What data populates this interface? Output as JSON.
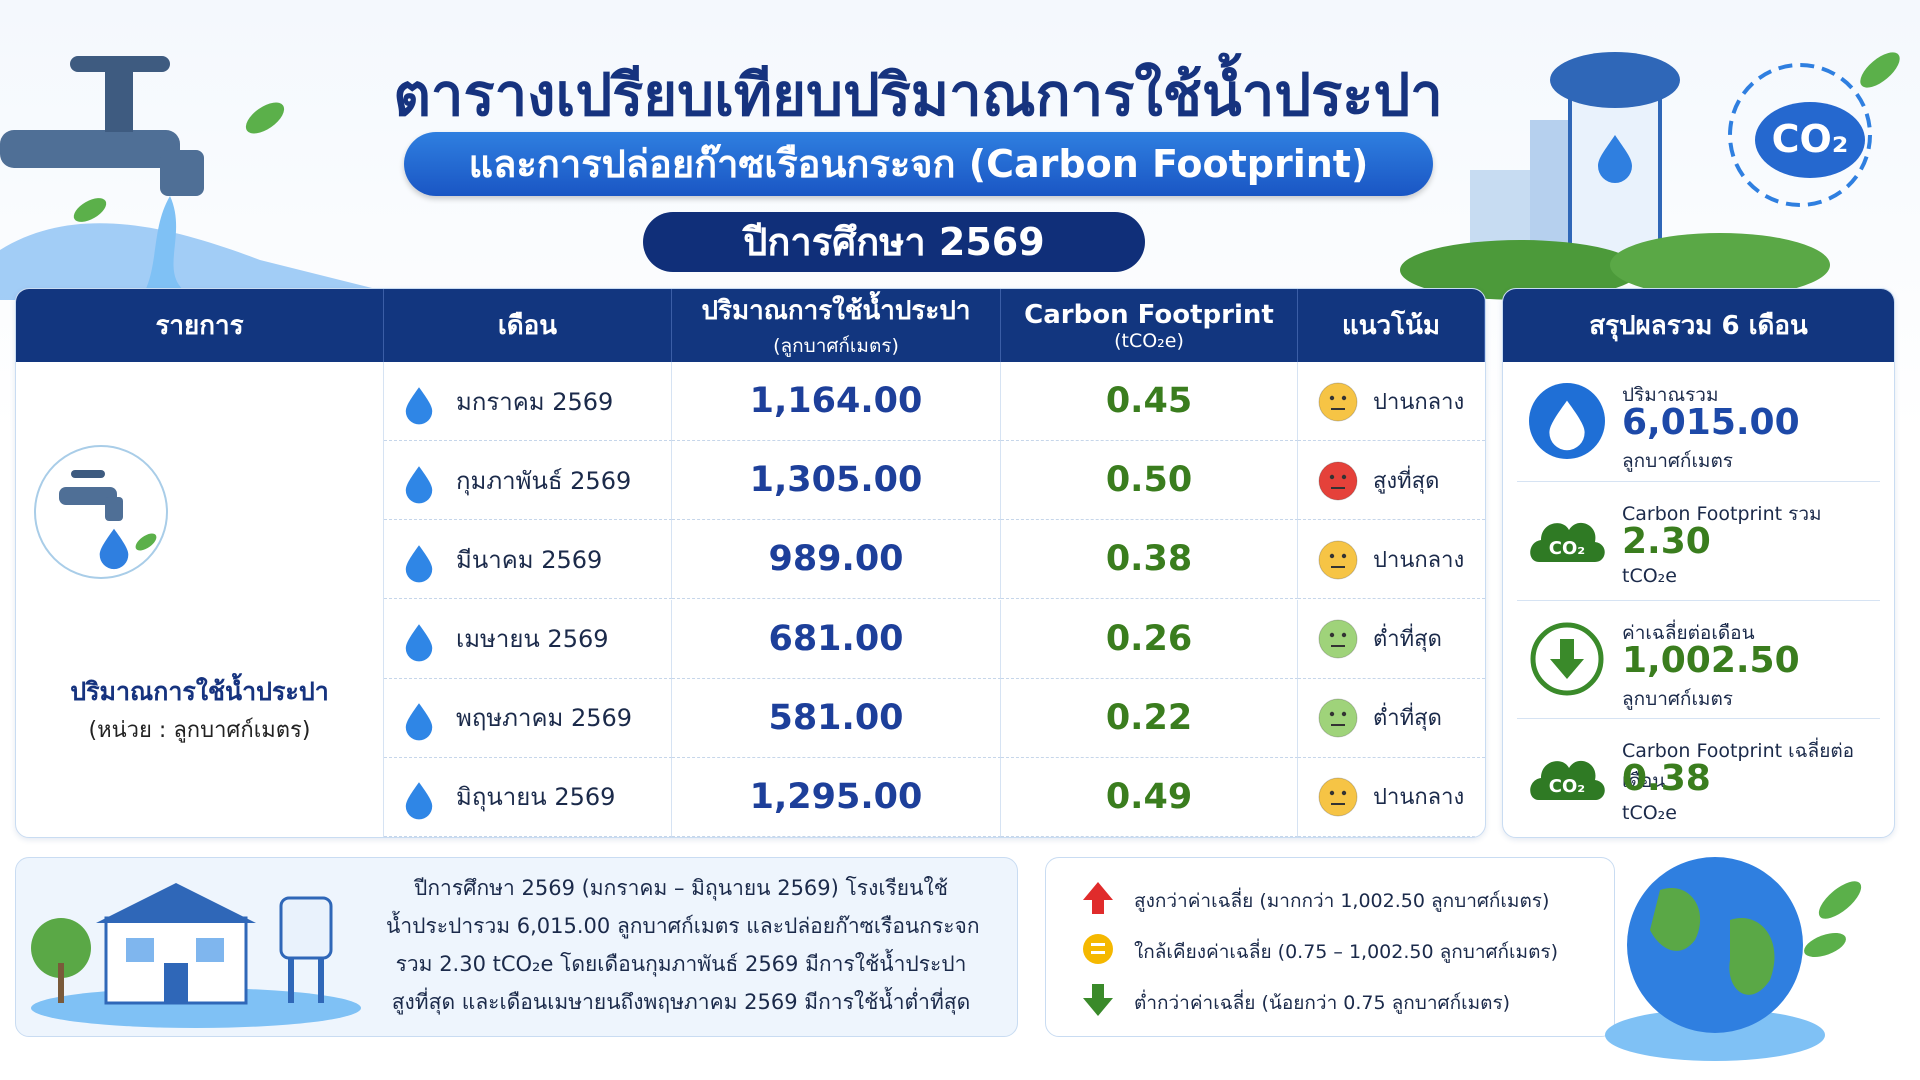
{
  "header": {
    "title": "ตารางเปรียบเทียบปริมาณการใช้น้ำประปา",
    "subtitle": "และการปล่อยก๊าซเรือนกระจก (Carbon Footprint)",
    "year": "ปีการศึกษา 2569"
  },
  "decor": {
    "co2": "CO₂"
  },
  "table": {
    "columns": [
      {
        "label": "รายการ"
      },
      {
        "label": "เดือน"
      },
      {
        "label": "ปริมาณการใช้น้ำประปา",
        "unit": "(ลูกบาศก์เมตร)"
      },
      {
        "label": "Carbon Footprint",
        "unit": "(tCO₂e)"
      },
      {
        "label": "แนวโน้ม"
      }
    ],
    "item": {
      "label": "ปริมาณการใช้น้ำประปา",
      "unit": "(หน่วย : ลูกบาศก์เมตร)"
    },
    "rows": [
      {
        "month": "มกราคม 2569",
        "usage": "1,164.00",
        "carbon": "0.45",
        "trend": "ปานกลาง",
        "face_color": "#f6c445"
      },
      {
        "month": "กุมภาพันธ์ 2569",
        "usage": "1,305.00",
        "carbon": "0.50",
        "trend": "สูงที่สุด",
        "face_color": "#e5413a"
      },
      {
        "month": "มีนาคม 2569",
        "usage": "989.00",
        "carbon": "0.38",
        "trend": "ปานกลาง",
        "face_color": "#f6c445"
      },
      {
        "month": "เมษายน 2569",
        "usage": "681.00",
        "carbon": "0.26",
        "trend": "ต่ำที่สุด",
        "face_color": "#9fd37a"
      },
      {
        "month": "พฤษภาคม 2569",
        "usage": "581.00",
        "carbon": "0.22",
        "trend": "ต่ำที่สุด",
        "face_color": "#9fd37a"
      },
      {
        "month": "มิถุนายน 2569",
        "usage": "1,295.00",
        "carbon": "0.49",
        "trend": "ปานกลาง",
        "face_color": "#f6c445"
      }
    ]
  },
  "summary": {
    "title": "สรุปผลรวม 6 เดือน",
    "items": [
      {
        "label": "ปริมาณรวม",
        "value": "6,015.00",
        "unit": "ลูกบาศก์เมตร",
        "icon": "drop",
        "color": "#1d49a8"
      },
      {
        "label": "Carbon Footprint รวม",
        "value": "2.30",
        "unit": "tCO₂e",
        "icon": "co2",
        "color": "#3a7d1e"
      },
      {
        "label": "ค่าเฉลี่ยต่อเดือน",
        "value": "1,002.50",
        "unit": "ลูกบาศก์เมตร",
        "icon": "down",
        "color": "#3a7d1e"
      },
      {
        "label": "Carbon Footprint เฉลี่ยต่อเดือน",
        "value": "0.38",
        "unit": "tCO₂e",
        "icon": "co2",
        "color": "#3a7d1e"
      }
    ]
  },
  "note": {
    "lines": [
      "ปีการศึกษา 2569 (มกราคม – มิถุนายน 2569) โรงเรียนใช้",
      "น้ำประปารวม 6,015.00 ลูกบาศก์เมตร และปล่อยก๊าซเรือนกระจก",
      "รวม 2.30 tCO₂e โดยเดือนกุมภาพันธ์ 2569 มีการใช้น้ำประปา",
      "สูงที่สุด และเดือนเมษายนถึงพฤษภาคม 2569 มีการใช้น้ำต่ำที่สุด"
    ]
  },
  "legend": {
    "items": [
      {
        "text": "สูงกว่าค่าเฉลี่ย (มากกว่า 1,002.50 ลูกบาศก์เมตร)",
        "icon": "up",
        "color": "#e02b2b"
      },
      {
        "text": "ใกล้เคียงค่าเฉลี่ย (0.75 – 1,002.50 ลูกบาศก์เมตร)",
        "icon": "equal",
        "color": "#f5b800"
      },
      {
        "text": "ต่ำกว่าค่าเฉลี่ย (น้อยกว่า 0.75 ลูกบาศก์เมตร)",
        "icon": "down",
        "color": "#3a8a2a"
      }
    ]
  }
}
